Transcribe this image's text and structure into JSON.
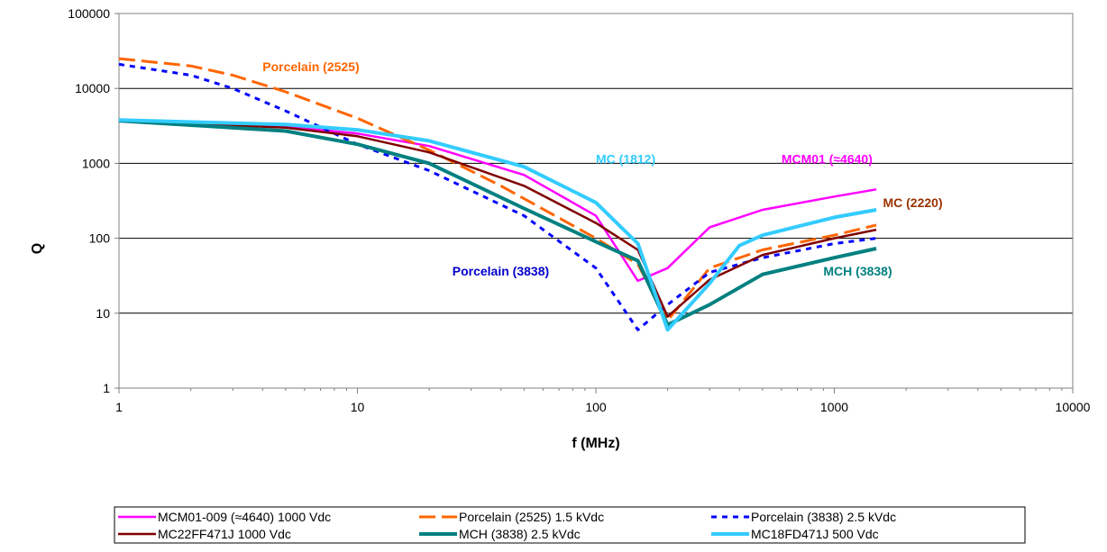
{
  "chart_data": {
    "type": "line",
    "xlabel": "f (MHz)",
    "ylabel": "Q",
    "xscale": "log",
    "yscale": "log",
    "xlim": [
      1,
      10000
    ],
    "ylim": [
      1,
      100000
    ],
    "grid": "horizontal major gridlines",
    "legend_position": "bottom",
    "x_tick_labels": [
      "1",
      "10",
      "100",
      "1000",
      "10000"
    ],
    "y_tick_labels": [
      "1",
      "10",
      "100",
      "1000",
      "10000",
      "100000"
    ],
    "series": [
      {
        "name": "MCM01-009 (≈4640) 1000 Vdc",
        "color": "#ff00ff",
        "style": "solid",
        "points": [
          [
            1,
            3700
          ],
          [
            5,
            3100
          ],
          [
            10,
            2500
          ],
          [
            20,
            1700
          ],
          [
            50,
            700
          ],
          [
            100,
            200
          ],
          [
            150,
            27
          ],
          [
            200,
            40
          ],
          [
            300,
            140
          ],
          [
            500,
            240
          ],
          [
            1000,
            360
          ],
          [
            1500,
            450
          ]
        ]
      },
      {
        "name": "Porcelain (2525) 1.5 kVdc",
        "color": "#ff6600",
        "style": "dashed",
        "points": [
          [
            1,
            25000
          ],
          [
            2,
            20000
          ],
          [
            3,
            15000
          ],
          [
            5,
            9000
          ],
          [
            10,
            4000
          ],
          [
            20,
            1500
          ],
          [
            40,
            500
          ],
          [
            100,
            100
          ],
          [
            150,
            45
          ],
          [
            200,
            8
          ],
          [
            300,
            40
          ],
          [
            500,
            70
          ],
          [
            1000,
            110
          ],
          [
            1500,
            150
          ]
        ]
      },
      {
        "name": "Porcelain (3838) 2.5 kVdc",
        "color": "#0000ff",
        "style": "dotted",
        "points": [
          [
            1,
            21000
          ],
          [
            2,
            15000
          ],
          [
            3,
            10000
          ],
          [
            5,
            5000
          ],
          [
            10,
            1800
          ],
          [
            20,
            800
          ],
          [
            50,
            200
          ],
          [
            100,
            40
          ],
          [
            150,
            6
          ],
          [
            200,
            13
          ],
          [
            300,
            35
          ],
          [
            500,
            55
          ],
          [
            1000,
            85
          ],
          [
            1500,
            100
          ]
        ]
      },
      {
        "name": "MC22FF471J  1000 Vdc",
        "color": "#800000",
        "style": "solid",
        "points": [
          [
            1,
            3700
          ],
          [
            5,
            3000
          ],
          [
            10,
            2300
          ],
          [
            20,
            1400
          ],
          [
            50,
            500
          ],
          [
            100,
            160
          ],
          [
            150,
            70
          ],
          [
            200,
            9
          ],
          [
            300,
            28
          ],
          [
            500,
            60
          ],
          [
            1000,
            100
          ],
          [
            1500,
            130
          ]
        ]
      },
      {
        "name": "MCH (3838) 2.5 kVdc",
        "color": "#008080",
        "style": "solid",
        "points": [
          [
            1,
            3700
          ],
          [
            5,
            2700
          ],
          [
            10,
            1800
          ],
          [
            20,
            1000
          ],
          [
            50,
            250
          ],
          [
            100,
            90
          ],
          [
            150,
            50
          ],
          [
            200,
            7
          ],
          [
            300,
            13
          ],
          [
            500,
            33
          ],
          [
            1000,
            55
          ],
          [
            1500,
            73
          ]
        ]
      },
      {
        "name": "MC18FD471J  500 Vdc",
        "color": "#33ccff",
        "style": "solid",
        "points": [
          [
            1,
            3800
          ],
          [
            5,
            3300
          ],
          [
            10,
            2800
          ],
          [
            20,
            2000
          ],
          [
            50,
            900
          ],
          [
            100,
            300
          ],
          [
            150,
            85
          ],
          [
            200,
            6
          ],
          [
            300,
            25
          ],
          [
            400,
            80
          ],
          [
            500,
            110
          ],
          [
            1000,
            190
          ],
          [
            1500,
            240
          ]
        ]
      }
    ],
    "annotations": [
      {
        "text": "Porcelain (2525)",
        "color": "#ff6600",
        "x": 4,
        "y": 17000
      },
      {
        "text": "MC (1812)",
        "color": "#33ccff",
        "x": 100,
        "y": 1000
      },
      {
        "text": "MCM01 (≈4640)",
        "color": "#ff00ff",
        "x": 600,
        "y": 1000
      },
      {
        "text": "MC (2220)",
        "color": "#993300",
        "x": 1600,
        "y": 260
      },
      {
        "text": "Porcelain (3838)",
        "color": "#0000cc",
        "x": 25,
        "y": 32
      },
      {
        "text": "MCH (3838)",
        "color": "#008080",
        "x": 900,
        "y": 32
      }
    ]
  }
}
